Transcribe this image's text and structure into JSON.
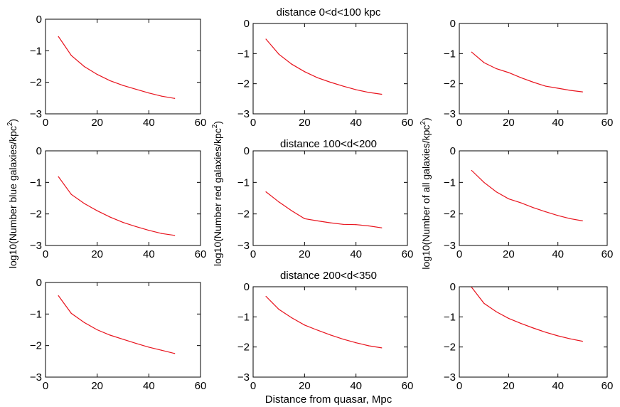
{
  "figure": {
    "xlabel": "Distance from quasar, Mpc",
    "row_titles": [
      "distance 0<d<100 kpc",
      "distance 100<d<200",
      "distance 200<d<350"
    ],
    "ylabels": [
      {
        "text": "log10(Number blue galaxies/kpc",
        "sup": "2",
        "tail": ")"
      },
      {
        "text": "log10(Number red galaxies/kpc",
        "sup": "2",
        "tail": ")"
      },
      {
        "text": "log10(Number of all galaxies/kpc",
        "sup": "2",
        "tail": ")"
      }
    ],
    "line_color": "#e8131d",
    "axis_color": "#000000"
  },
  "chart_data": [
    {
      "type": "line",
      "name": "blue-d0-100",
      "title": "",
      "ylabel": "",
      "xlabel": "",
      "xlim": [
        0,
        60
      ],
      "ylim": [
        -3,
        0
      ],
      "xticks": [
        0,
        20,
        40,
        60
      ],
      "yticks": [
        0,
        -1,
        -2,
        -3
      ],
      "x": [
        5,
        10,
        15,
        20,
        25,
        30,
        35,
        40,
        45,
        50
      ],
      "y": [
        -0.55,
        -1.15,
        -1.5,
        -1.75,
        -1.95,
        -2.1,
        -2.22,
        -2.34,
        -2.44,
        -2.51
      ]
    },
    {
      "type": "line",
      "name": "red-d0-100",
      "title": "distance 0<d<100 kpc",
      "ylabel": "",
      "xlabel": "",
      "xlim": [
        0,
        60
      ],
      "ylim": [
        -3,
        0
      ],
      "xticks": [
        0,
        20,
        40,
        60
      ],
      "yticks": [
        0,
        -1,
        -2,
        -3
      ],
      "x": [
        5,
        10,
        15,
        20,
        25,
        30,
        35,
        40,
        45,
        50
      ],
      "y": [
        -0.52,
        -1.02,
        -1.35,
        -1.6,
        -1.8,
        -1.95,
        -2.08,
        -2.2,
        -2.29,
        -2.35
      ]
    },
    {
      "type": "line",
      "name": "all-d0-100",
      "title": "",
      "ylabel": "",
      "xlabel": "",
      "xlim": [
        0,
        60
      ],
      "ylim": [
        -3,
        0
      ],
      "xticks": [
        0,
        20,
        40,
        60
      ],
      "yticks": [
        0,
        -1,
        -2,
        -3
      ],
      "x": [
        5,
        10,
        15,
        20,
        25,
        30,
        35,
        40,
        45,
        50
      ],
      "y": [
        -0.95,
        -1.3,
        -1.5,
        -1.63,
        -1.8,
        -1.95,
        -2.08,
        -2.15,
        -2.22,
        -2.27
      ]
    },
    {
      "type": "line",
      "name": "blue-d100-200",
      "title": "",
      "ylabel": "log10(Number blue galaxies/kpc^2)",
      "xlabel": "",
      "xlim": [
        0,
        60
      ],
      "ylim": [
        -3,
        0
      ],
      "xticks": [
        0,
        20,
        40,
        60
      ],
      "yticks": [
        0,
        -1,
        -2,
        -3
      ],
      "x": [
        5,
        10,
        15,
        20,
        25,
        30,
        35,
        40,
        45,
        50
      ],
      "y": [
        -0.82,
        -1.38,
        -1.67,
        -1.9,
        -2.1,
        -2.27,
        -2.4,
        -2.52,
        -2.62,
        -2.68
      ]
    },
    {
      "type": "line",
      "name": "red-d100-200",
      "title": "distance 100<d<200",
      "ylabel": "log10(Number red galaxies/kpc^2)",
      "xlabel": "",
      "xlim": [
        0,
        60
      ],
      "ylim": [
        -3,
        0
      ],
      "xticks": [
        0,
        20,
        40,
        60
      ],
      "yticks": [
        0,
        -1,
        -2,
        -3
      ],
      "x": [
        5,
        10,
        15,
        20,
        25,
        30,
        35,
        40,
        45,
        50
      ],
      "y": [
        -1.3,
        -1.62,
        -1.9,
        -2.15,
        -2.22,
        -2.28,
        -2.33,
        -2.34,
        -2.38,
        -2.44
      ]
    },
    {
      "type": "line",
      "name": "all-d100-200",
      "title": "",
      "ylabel": "log10(Number of all galaxies/kpc^2)",
      "xlabel": "",
      "xlim": [
        0,
        60
      ],
      "ylim": [
        -3,
        0
      ],
      "xticks": [
        0,
        20,
        40,
        60
      ],
      "yticks": [
        0,
        -1,
        -2,
        -3
      ],
      "x": [
        5,
        10,
        15,
        20,
        25,
        30,
        35,
        40,
        45,
        50
      ],
      "y": [
        -0.62,
        -1.0,
        -1.3,
        -1.52,
        -1.65,
        -1.8,
        -1.93,
        -2.05,
        -2.15,
        -2.22
      ]
    },
    {
      "type": "line",
      "name": "blue-d200-350",
      "title": "",
      "ylabel": "",
      "xlabel": "",
      "xlim": [
        0,
        60
      ],
      "ylim": [
        -3,
        0
      ],
      "xticks": [
        0,
        20,
        40,
        60
      ],
      "yticks": [
        0,
        -1,
        -2,
        -3
      ],
      "x": [
        5,
        10,
        15,
        20,
        25,
        30,
        35,
        40,
        45,
        50
      ],
      "y": [
        -0.42,
        -0.98,
        -1.27,
        -1.5,
        -1.67,
        -1.8,
        -1.93,
        -2.05,
        -2.15,
        -2.25
      ]
    },
    {
      "type": "line",
      "name": "red-d200-350",
      "title": "distance 200<d<350",
      "ylabel": "",
      "xlabel": "Distance from quasar, Mpc",
      "xlim": [
        0,
        60
      ],
      "ylim": [
        -3,
        0
      ],
      "xticks": [
        0,
        20,
        40,
        60
      ],
      "yticks": [
        0,
        -1,
        -2,
        -3
      ],
      "x": [
        5,
        10,
        15,
        20,
        25,
        30,
        35,
        40,
        45,
        50
      ],
      "y": [
        -0.32,
        -0.75,
        -1.03,
        -1.27,
        -1.44,
        -1.6,
        -1.74,
        -1.86,
        -1.96,
        -2.03
      ]
    },
    {
      "type": "line",
      "name": "all-d200-350",
      "title": "",
      "ylabel": "",
      "xlabel": "",
      "xlim": [
        0,
        60
      ],
      "ylim": [
        -3,
        0
      ],
      "xticks": [
        0,
        20,
        40,
        60
      ],
      "yticks": [
        0,
        -1,
        -2,
        -3
      ],
      "x": [
        5,
        10,
        15,
        20,
        25,
        30,
        35,
        40,
        45,
        50
      ],
      "y": [
        -0.02,
        -0.55,
        -0.83,
        -1.05,
        -1.22,
        -1.37,
        -1.51,
        -1.63,
        -1.73,
        -1.81
      ]
    }
  ]
}
